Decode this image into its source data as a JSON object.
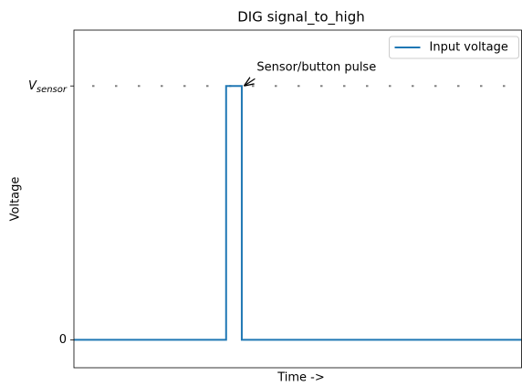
{
  "chart_data": {
    "type": "line",
    "title": "DIG signal_to_high",
    "xlabel": "Time ->",
    "ylabel": "Voltage",
    "x": [
      0,
      34,
      34,
      37.5,
      37.5,
      100
    ],
    "series": [
      {
        "name": "Input voltage",
        "color": "#1f77b4",
        "values": [
          0,
          0,
          1,
          1,
          0,
          0
        ]
      }
    ],
    "xlim": [
      0,
      100
    ],
    "ylim": [
      -0.11,
      1.22
    ],
    "yticks": [
      0,
      {
        "value": 1,
        "label": "V",
        "subscript": "sensor"
      }
    ],
    "reference_line": {
      "value": 1,
      "color": "#808080",
      "style": "dotted"
    },
    "annotation": {
      "text": "Sensor/button pulse",
      "x": 38,
      "y": 1
    },
    "legend": "upper right",
    "grid": false
  }
}
